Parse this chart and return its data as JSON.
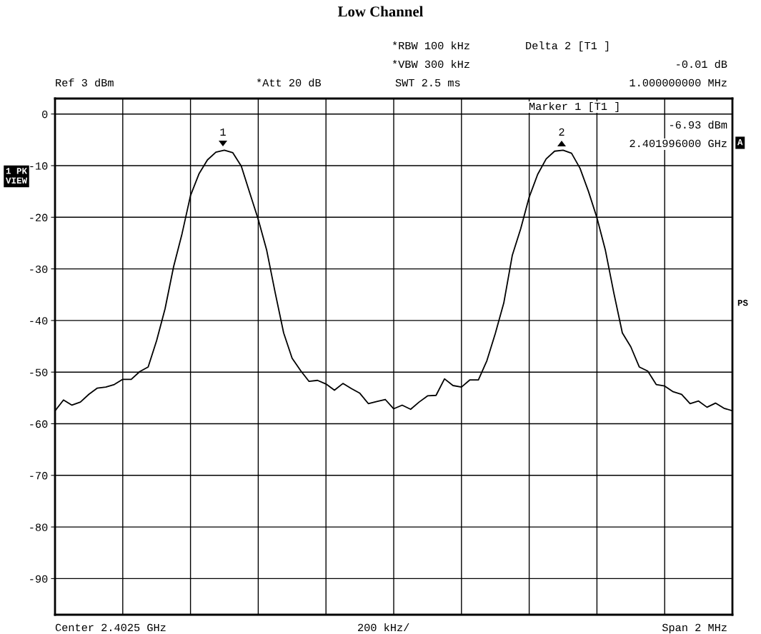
{
  "chart_data": {
    "type": "line",
    "title": "Low Channel",
    "annotations": [
      "*RBW 100 kHz",
      "Delta 2 [T1 ]",
      "*VBW 300 kHz",
      "-0.01 dB",
      "Ref 3 dBm",
      "*Att 20 dB",
      "SWT 2.5 ms",
      "1.000000000 MHz",
      "Marker 1 [T1 ]",
      "-6.93 dBm",
      "2.401996000 GHz",
      "1 PK\nVIEW",
      "A",
      "PS",
      "Center 2.4025 GHz",
      "200 kHz/",
      "Span 2 MHz",
      "1",
      "2"
    ],
    "categories": [
      null,
      null,
      null,
      null,
      null,
      null,
      null,
      null,
      null,
      null,
      null,
      null,
      null,
      null,
      null,
      null,
      null,
      null,
      null,
      null,
      null,
      null,
      null,
      null,
      null,
      null,
      null,
      null,
      null,
      null,
      null,
      null,
      null,
      null,
      null,
      null,
      null,
      null,
      null,
      null,
      null,
      null,
      null,
      null,
      null,
      null,
      null,
      null,
      null,
      null,
      null,
      null,
      null,
      null,
      null,
      null,
      null,
      null,
      null,
      null,
      null,
      null,
      null,
      null,
      null,
      null,
      null,
      null,
      null,
      null,
      null,
      null,
      null,
      null,
      null,
      null,
      null,
      null,
      null,
      null,
      null
    ],
    "ylim": [
      -97,
      3
    ],
    "yticks": [
      {
        "value": 0,
        "label": "0"
      },
      {
        "value": -10,
        "label": "-10"
      },
      {
        "value": -20,
        "label": "-20"
      },
      {
        "value": -30,
        "label": "-30"
      },
      {
        "value": -40,
        "label": "-40"
      },
      {
        "value": -50,
        "label": "-50"
      },
      {
        "value": -60,
        "label": "-60"
      },
      {
        "value": -70,
        "label": "-70"
      },
      {
        "value": -80,
        "label": "-80"
      },
      {
        "value": -90,
        "label": "-90"
      }
    ],
    "grid": true,
    "line_style": "solid",
    "series": [
      {
        "color": "#000000",
        "values": [
          -57.5,
          -55.4,
          -56.4,
          -55.8,
          -54.3,
          -53.1,
          -52.9,
          -52.4,
          -51.4,
          -51.4,
          -49.9,
          -49.0,
          -43.9,
          -37.7,
          -29.6,
          -23.2,
          -15.8,
          -11.6,
          -8.9,
          -7.4,
          -7.0,
          -7.5,
          -10.1,
          -15.3,
          -20.4,
          -26.4,
          -34.6,
          -42.4,
          -47.3,
          -49.7,
          -51.8,
          -51.6,
          -52.3,
          -53.5,
          -52.2,
          -53.2,
          -54.1,
          -56.1,
          -55.7,
          -55.3,
          -57.1,
          -56.4,
          -57.2,
          -55.8,
          -54.6,
          -54.5,
          -51.3,
          -52.6,
          -52.9,
          -51.5,
          -51.5,
          -47.8,
          -42.5,
          -36.6,
          -27.4,
          -22.2,
          -16.1,
          -11.7,
          -8.7,
          -7.2,
          -7.0,
          -7.6,
          -10.5,
          -15.0,
          -20.1,
          -26.4,
          -34.7,
          -42.4,
          -45.1,
          -49.0,
          -49.8,
          -52.4,
          -52.7,
          -53.8,
          -54.3,
          -56.1,
          -55.6,
          -56.8,
          -56.0,
          -57.0,
          -57.5
        ]
      }
    ]
  }
}
